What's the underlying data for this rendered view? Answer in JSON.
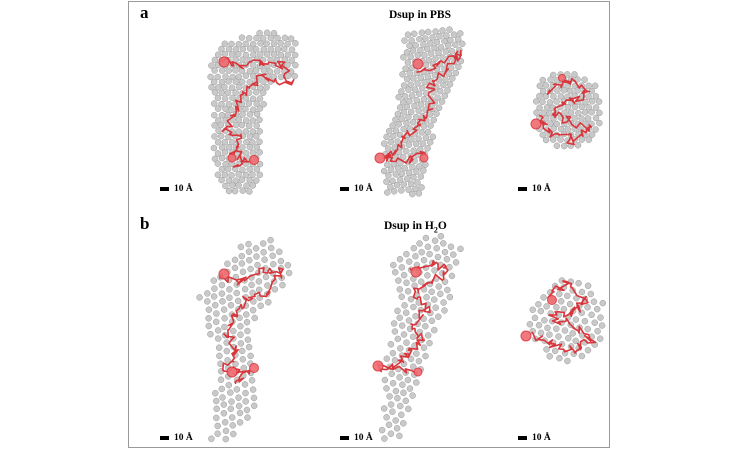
{
  "figure": {
    "panels": [
      {
        "letter": "a",
        "title": "Dsup in PBS",
        "title_sub": "",
        "title_tail": "",
        "scale_labels": [
          "10 Å",
          "10 Å",
          "10 Å"
        ]
      },
      {
        "letter": "b",
        "title": "Dsup in H",
        "title_sub": "2",
        "title_tail": "O",
        "scale_labels": [
          "10 Å",
          "10 Å",
          "10 Å"
        ]
      }
    ],
    "colors": {
      "bead_fill": "#c9c9c9",
      "bead_stroke": "#9b9b9b",
      "protein": "#d9353b",
      "protein_light": "#f06a70",
      "frame": "#9a9a9a"
    }
  }
}
